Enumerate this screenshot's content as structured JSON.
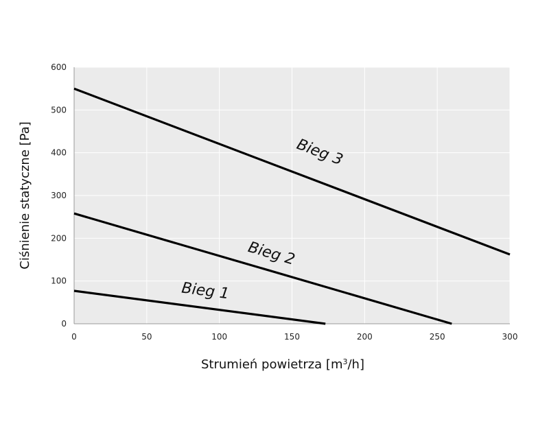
{
  "chart_data": {
    "type": "line",
    "xlabel": "Strumień powietrza [m³/h]",
    "ylabel": "Ciśnienie statyczne [Pa]",
    "xlim": [
      0,
      300
    ],
    "ylim": [
      0,
      600
    ],
    "x_ticks": [
      0,
      50,
      100,
      150,
      200,
      250,
      300
    ],
    "y_ticks": [
      0,
      100,
      200,
      300,
      400,
      500,
      600
    ],
    "grid": true,
    "colors": {
      "plot_background": "#ebebeb",
      "grid": "#ffffff",
      "line": "#000000"
    },
    "series": [
      {
        "name": "Bieg 1",
        "x": [
          0,
          173
        ],
        "y": [
          77,
          0
        ]
      },
      {
        "name": "Bieg 2",
        "x": [
          0,
          260
        ],
        "y": [
          258,
          0
        ]
      },
      {
        "name": "Bieg 3",
        "x": [
          0,
          300
        ],
        "y": [
          550,
          162
        ]
      }
    ]
  }
}
